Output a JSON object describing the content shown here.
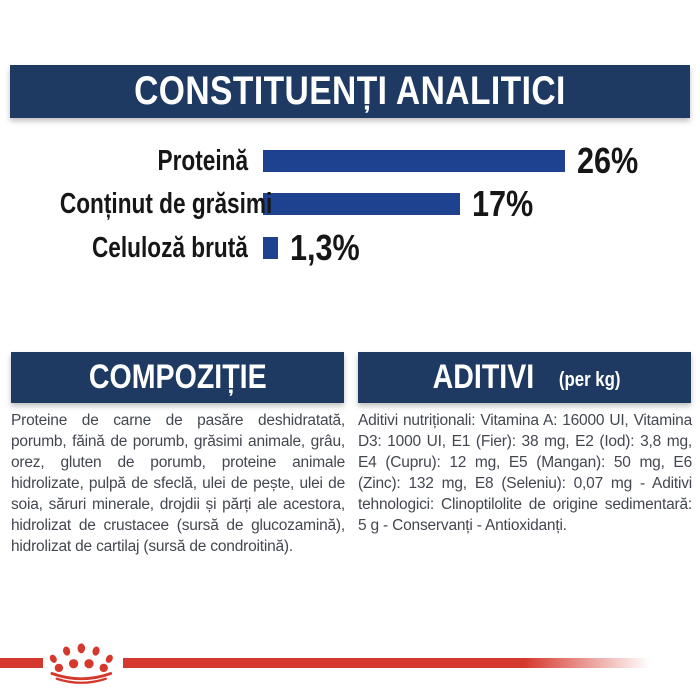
{
  "colors": {
    "header_navy": "#1e3a63",
    "bar_blue": "#1e428f",
    "label_black": "#161616",
    "body_text": "#43474f",
    "brand_red": "#d5382d",
    "header_text": "#ffffff",
    "background": "#ffffff"
  },
  "analytical": {
    "title": "CONSTITUENȚI ANALITICI",
    "rows": [
      {
        "label": "Proteină",
        "value": "26%",
        "percent": 26
      },
      {
        "label": "Conținut de grăsimi",
        "value": "17%",
        "percent": 17
      },
      {
        "label": "Celuloză brută",
        "value": "1,3%",
        "percent": 1.3
      }
    ]
  },
  "chart_data": {
    "type": "bar",
    "orientation": "horizontal",
    "title": "CONSTITUENȚI ANALITICI",
    "categories": [
      "Proteină",
      "Conținut de grăsimi",
      "Celuloză brută"
    ],
    "values": [
      26,
      17,
      1.3
    ],
    "value_labels": [
      "26%",
      "17%",
      "1,3%"
    ],
    "xlim": [
      0,
      26
    ],
    "bar_color": "#1e428f",
    "grid": false,
    "legend": false
  },
  "composition": {
    "title": "COMPOZIȚIE",
    "body": "Proteine de carne de pasăre deshidratată, porumb, făină de porumb, grăsimi animale, grâu, orez, gluten de porumb, proteine animale hidrolizate, pulpă de sfeclă, ulei de pește, ulei de soia, săruri minerale, drojdii și părți ale acestora, hidrolizat de crustacee (sursă de glucozamină), hidrolizat de cartilaj (sursă de condroitină)."
  },
  "additives": {
    "title": "ADITIVI",
    "title_suffix": "(per kg)",
    "body": "Aditivi nutriționali: Vitamina A: 16000 UI, Vitamina D3: 1000 UI, E1 (Fier): 38 mg, E2 (Iod): 3,8 mg, E4 (Cupru): 12 mg, E5 (Mangan): 50 mg, E6 (Zinc): 132 mg, E8 (Seleniu): 0,07 mg - Aditivi tehnologici: Clinoptilolite de origine sedimentară: 5 g - Conservanți - Antioxidanți."
  },
  "footer": {
    "brand_mark": "royal-canin-crown"
  }
}
